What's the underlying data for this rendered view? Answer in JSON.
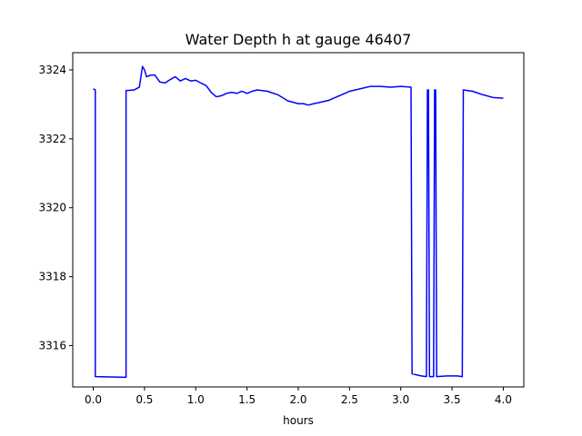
{
  "chart_data": {
    "type": "line",
    "title": "Water Depth h at gauge 46407",
    "xlabel": "hours",
    "ylabel": "",
    "xlim": [
      -0.2,
      4.2
    ],
    "ylim": [
      3314.8,
      3324.5
    ],
    "grid": false,
    "legend": "none",
    "x_ticks": [
      0.0,
      0.5,
      1.0,
      1.5,
      2.0,
      2.5,
      3.0,
      3.5,
      4.0
    ],
    "x_tick_labels": [
      "0.0",
      "0.5",
      "1.0",
      "1.5",
      "2.0",
      "2.5",
      "3.0",
      "3.5",
      "4.0"
    ],
    "y_ticks": [
      3316,
      3318,
      3320,
      3322,
      3324
    ],
    "y_tick_labels": [
      "3316",
      "3318",
      "3320",
      "3322",
      "3324"
    ],
    "series": [
      {
        "color": "#0000ff",
        "points": [
          [
            0.0,
            3323.45
          ],
          [
            0.02,
            3323.42
          ],
          [
            0.02,
            3315.1
          ],
          [
            0.32,
            3315.08
          ],
          [
            0.32,
            3323.4
          ],
          [
            0.4,
            3323.42
          ],
          [
            0.45,
            3323.5
          ],
          [
            0.48,
            3324.1
          ],
          [
            0.5,
            3324.0
          ],
          [
            0.52,
            3323.8
          ],
          [
            0.56,
            3323.85
          ],
          [
            0.6,
            3323.85
          ],
          [
            0.65,
            3323.65
          ],
          [
            0.7,
            3323.62
          ],
          [
            0.75,
            3323.72
          ],
          [
            0.8,
            3323.8
          ],
          [
            0.85,
            3323.68
          ],
          [
            0.9,
            3323.75
          ],
          [
            0.95,
            3323.68
          ],
          [
            1.0,
            3323.7
          ],
          [
            1.05,
            3323.62
          ],
          [
            1.1,
            3323.55
          ],
          [
            1.15,
            3323.35
          ],
          [
            1.2,
            3323.22
          ],
          [
            1.25,
            3323.25
          ],
          [
            1.3,
            3323.32
          ],
          [
            1.35,
            3323.35
          ],
          [
            1.4,
            3323.32
          ],
          [
            1.45,
            3323.38
          ],
          [
            1.5,
            3323.32
          ],
          [
            1.55,
            3323.38
          ],
          [
            1.6,
            3323.42
          ],
          [
            1.7,
            3323.38
          ],
          [
            1.8,
            3323.28
          ],
          [
            1.9,
            3323.1
          ],
          [
            2.0,
            3323.02
          ],
          [
            2.05,
            3323.02
          ],
          [
            2.1,
            3322.98
          ],
          [
            2.15,
            3323.02
          ],
          [
            2.2,
            3323.05
          ],
          [
            2.3,
            3323.12
          ],
          [
            2.4,
            3323.25
          ],
          [
            2.5,
            3323.38
          ],
          [
            2.6,
            3323.45
          ],
          [
            2.7,
            3323.52
          ],
          [
            2.8,
            3323.52
          ],
          [
            2.9,
            3323.5
          ],
          [
            3.0,
            3323.52
          ],
          [
            3.1,
            3323.5
          ],
          [
            3.11,
            3315.18
          ],
          [
            3.2,
            3315.12
          ],
          [
            3.25,
            3315.1
          ],
          [
            3.26,
            3323.42
          ],
          [
            3.27,
            3323.42
          ],
          [
            3.28,
            3315.1
          ],
          [
            3.32,
            3315.1
          ],
          [
            3.33,
            3323.42
          ],
          [
            3.34,
            3323.42
          ],
          [
            3.35,
            3315.1
          ],
          [
            3.45,
            3315.12
          ],
          [
            3.55,
            3315.12
          ],
          [
            3.6,
            3315.1
          ],
          [
            3.61,
            3323.42
          ],
          [
            3.7,
            3323.38
          ],
          [
            3.8,
            3323.28
          ],
          [
            3.9,
            3323.2
          ],
          [
            4.0,
            3323.18
          ]
        ]
      }
    ]
  }
}
